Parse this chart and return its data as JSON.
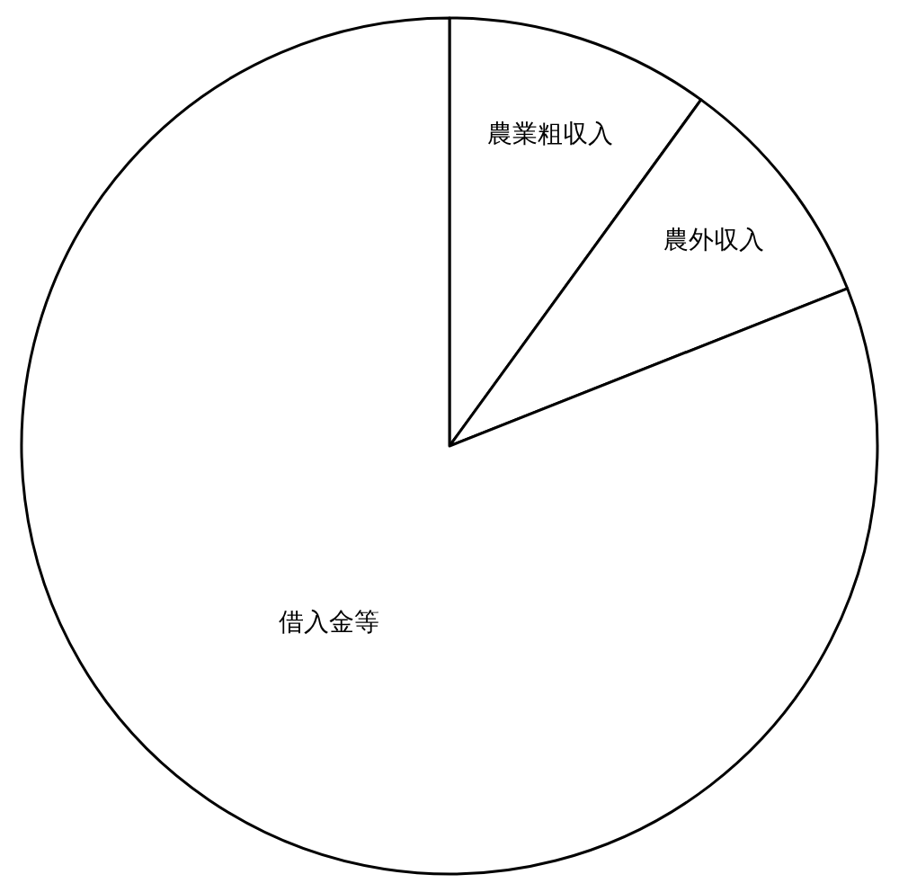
{
  "chart_data": {
    "type": "pie",
    "categories": [
      "農業粗収入",
      "農外収入",
      "借入金等"
    ],
    "values": [
      10,
      9,
      81
    ],
    "colors": [
      "#ffffff",
      "#ffffff",
      "#ffffff"
    ],
    "legend": false
  }
}
